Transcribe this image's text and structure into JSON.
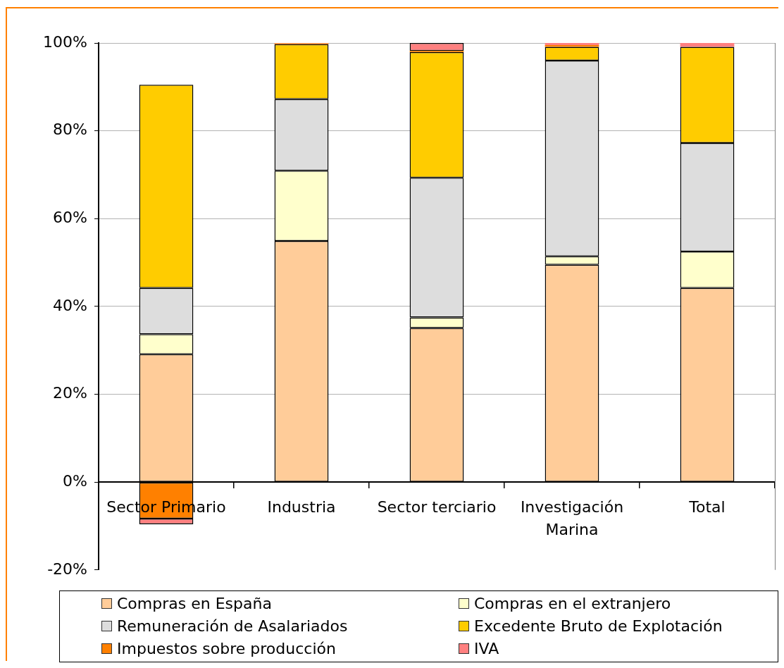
{
  "chart_data": {
    "type": "bar",
    "stacked": true,
    "categories": [
      "Sector Primario",
      "Industria",
      "Sector terciario",
      "Investigación Marina",
      "Total"
    ],
    "series": [
      {
        "name": "Compras en España",
        "color": "#ffcc99",
        "values": [
          29.1,
          54.9,
          35.1,
          49.5,
          44.2
        ]
      },
      {
        "name": "Compras en el extranjero",
        "color": "#ffffcc",
        "values": [
          4.6,
          16.0,
          2.4,
          1.9,
          8.3
        ]
      },
      {
        "name": "Remuneración de Asalariados",
        "color": "#dddddd",
        "values": [
          10.5,
          16.3,
          31.8,
          44.6,
          24.7
        ]
      },
      {
        "name": "Excedente Bruto de Explotación",
        "color": "#ffcc00",
        "values": [
          46.3,
          12.5,
          28.6,
          3.1,
          21.9
        ]
      },
      {
        "name": "Impuestos sobre producción",
        "color": "#ff8000",
        "values": [
          -8.3,
          0.2,
          0.3,
          0.4,
          0
        ]
      },
      {
        "name": "IVA",
        "color": "#ff8080",
        "values": [
          -1.3,
          0.1,
          1.8,
          0.5,
          0.9
        ]
      }
    ],
    "ylim": [
      -20,
      100
    ],
    "yticks": [
      {
        "value": -20,
        "label": "-20%"
      },
      {
        "value": 0,
        "label": "0%"
      },
      {
        "value": 20,
        "label": "20%"
      },
      {
        "value": 40,
        "label": "40%"
      },
      {
        "value": 60,
        "label": "60%"
      },
      {
        "value": 80,
        "label": "80%"
      },
      {
        "value": 100,
        "label": "100%"
      }
    ],
    "grid": "y",
    "legend": "bottom"
  }
}
